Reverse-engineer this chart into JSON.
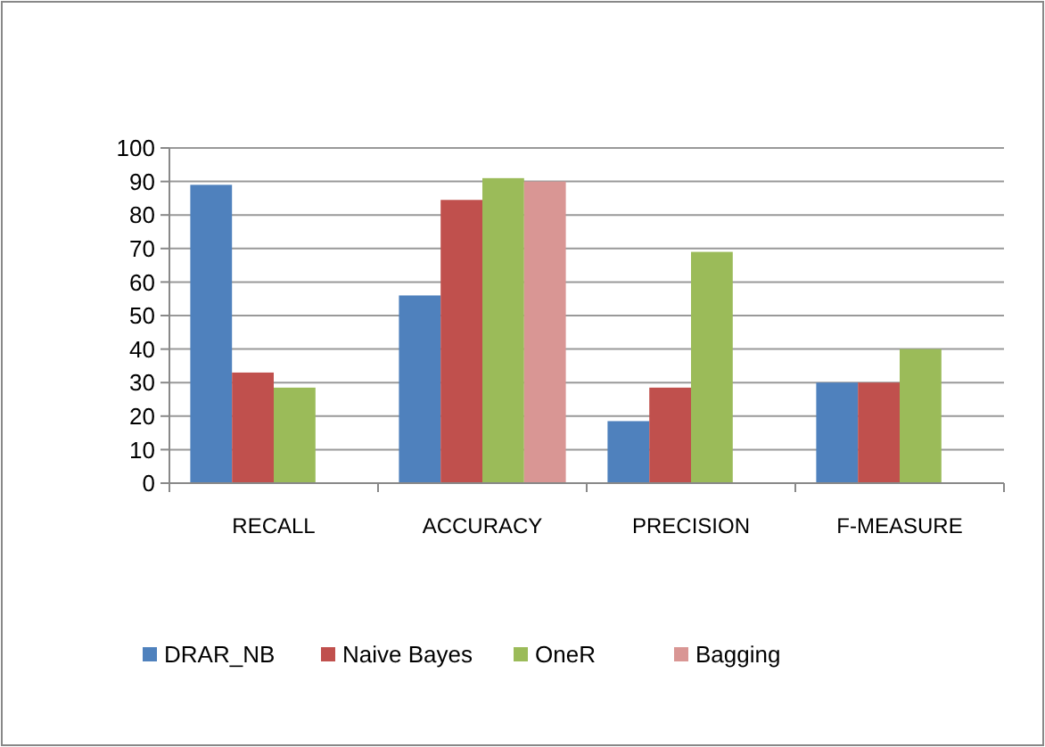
{
  "chart_data": {
    "type": "bar",
    "categories": [
      "RECALL",
      "ACCURACY",
      "PRECISION",
      "F-MEASURE"
    ],
    "series": [
      {
        "name": "DRAR_NB",
        "color": "#4f81bd",
        "values": [
          89,
          56,
          18.5,
          30
        ]
      },
      {
        "name": "Naive Bayes",
        "color": "#c0504d",
        "values": [
          33,
          84.5,
          28.5,
          30
        ]
      },
      {
        "name": "OneR",
        "color": "#9bbb59",
        "values": [
          28.5,
          91,
          69,
          40
        ]
      },
      {
        "name": "Bagging",
        "color": "#d99694",
        "values": [
          null,
          90,
          null,
          null
        ]
      }
    ],
    "ylim": [
      0,
      100
    ],
    "yticks": [
      0,
      10,
      20,
      30,
      40,
      50,
      60,
      70,
      80,
      90,
      100
    ],
    "grid": "y",
    "legend": "bottom"
  }
}
